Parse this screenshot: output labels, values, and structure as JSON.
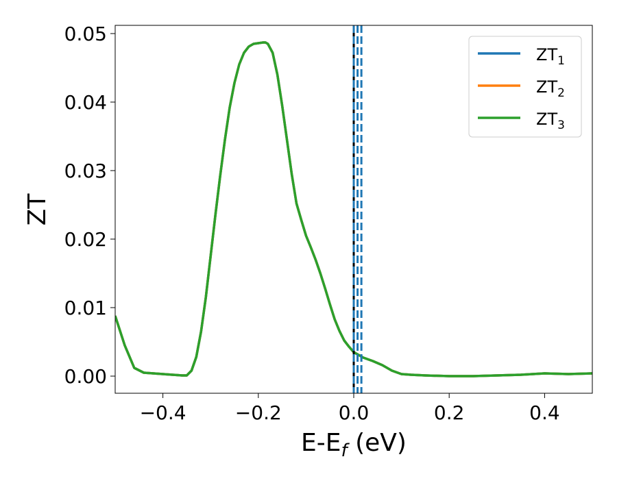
{
  "chart_data": {
    "type": "line",
    "xlabel": "E-E",
    "xlabel_sub": "f",
    "xlabel_unit": " (eV)",
    "ylabel": "ZT",
    "xlim": [
      -0.5,
      0.5
    ],
    "ylim": [
      -0.0025,
      0.0512
    ],
    "x_ticks": [
      -0.4,
      -0.2,
      0.0,
      0.2,
      0.4
    ],
    "x_tick_labels": [
      "−0.4",
      "−0.2",
      "0.0",
      "0.2",
      "0.4"
    ],
    "y_ticks": [
      0.0,
      0.01,
      0.02,
      0.03,
      0.04,
      0.05
    ],
    "y_tick_labels": [
      "0.00",
      "0.01",
      "0.02",
      "0.03",
      "0.04",
      "0.05"
    ],
    "grid": false,
    "legend_position": "top-right",
    "legend": [
      {
        "main": "ZT",
        "sub": "1",
        "color": "#1f77b4"
      },
      {
        "main": "ZT",
        "sub": "2",
        "color": "#ff7f0e"
      },
      {
        "main": "ZT",
        "sub": "3",
        "color": "#2ca02c"
      }
    ],
    "vlines": [
      {
        "x": 0.0,
        "style": "solid",
        "color": "#000000"
      },
      {
        "x": 0.0,
        "style": "dashed",
        "color": "#1f77b4"
      },
      {
        "x": 0.008,
        "style": "dashed",
        "color": "#1f77b4"
      },
      {
        "x": 0.016,
        "style": "dashed",
        "color": "#1f77b4"
      }
    ],
    "x": [
      -0.5,
      -0.48,
      -0.46,
      -0.44,
      -0.42,
      -0.4,
      -0.38,
      -0.36,
      -0.35,
      -0.34,
      -0.33,
      -0.32,
      -0.31,
      -0.3,
      -0.29,
      -0.28,
      -0.27,
      -0.26,
      -0.25,
      -0.24,
      -0.23,
      -0.22,
      -0.21,
      -0.2,
      -0.19,
      -0.185,
      -0.18,
      -0.17,
      -0.16,
      -0.15,
      -0.14,
      -0.13,
      -0.12,
      -0.11,
      -0.1,
      -0.09,
      -0.08,
      -0.07,
      -0.06,
      -0.05,
      -0.04,
      -0.03,
      -0.02,
      -0.01,
      0.0,
      0.02,
      0.04,
      0.06,
      0.08,
      0.1,
      0.12,
      0.15,
      0.2,
      0.25,
      0.3,
      0.35,
      0.4,
      0.45,
      0.5
    ],
    "series": [
      {
        "name": "ZT₁",
        "color": "#1f77b4",
        "values": [
          0.0088,
          0.0045,
          0.0012,
          0.0005,
          0.0004,
          0.0003,
          0.0002,
          0.0001,
          0.0001,
          0.0008,
          0.0028,
          0.0065,
          0.0115,
          0.0175,
          0.0235,
          0.0292,
          0.0345,
          0.0392,
          0.0428,
          0.0455,
          0.0472,
          0.0481,
          0.0485,
          0.0486,
          0.0487,
          0.0487,
          0.0485,
          0.0472,
          0.044,
          0.0395,
          0.0345,
          0.0295,
          0.0252,
          0.0228,
          0.0205,
          0.0188,
          0.017,
          0.015,
          0.0128,
          0.0105,
          0.0083,
          0.0066,
          0.0052,
          0.0043,
          0.0035,
          0.0027,
          0.0022,
          0.0016,
          0.0008,
          0.0003,
          0.0002,
          0.0001,
          0.0,
          0.0,
          0.0001,
          0.0002,
          0.0004,
          0.0003,
          0.0004
        ]
      },
      {
        "name": "ZT₂",
        "color": "#ff7f0e",
        "values": [
          0.0088,
          0.0045,
          0.0012,
          0.0005,
          0.0004,
          0.0003,
          0.0002,
          0.0001,
          0.0001,
          0.0008,
          0.0028,
          0.0065,
          0.0115,
          0.0175,
          0.0235,
          0.0292,
          0.0345,
          0.0392,
          0.0428,
          0.0455,
          0.0472,
          0.0481,
          0.0485,
          0.0486,
          0.0487,
          0.0487,
          0.0485,
          0.0472,
          0.044,
          0.0395,
          0.0345,
          0.0295,
          0.0252,
          0.0228,
          0.0205,
          0.0188,
          0.017,
          0.015,
          0.0128,
          0.0105,
          0.0083,
          0.0066,
          0.0052,
          0.0043,
          0.0035,
          0.0027,
          0.0022,
          0.0016,
          0.0008,
          0.0003,
          0.0002,
          0.0001,
          0.0,
          0.0,
          0.0001,
          0.0002,
          0.0004,
          0.0003,
          0.0004
        ]
      },
      {
        "name": "ZT₃",
        "color": "#2ca02c",
        "values": [
          0.0088,
          0.0045,
          0.0012,
          0.0005,
          0.0004,
          0.0003,
          0.0002,
          0.0001,
          0.0001,
          0.0008,
          0.0028,
          0.0065,
          0.0115,
          0.0175,
          0.0235,
          0.0292,
          0.0345,
          0.0392,
          0.0428,
          0.0455,
          0.0472,
          0.0481,
          0.0485,
          0.0486,
          0.0487,
          0.0487,
          0.0485,
          0.0472,
          0.044,
          0.0395,
          0.0345,
          0.0295,
          0.0252,
          0.0228,
          0.0205,
          0.0188,
          0.017,
          0.015,
          0.0128,
          0.0105,
          0.0083,
          0.0066,
          0.0052,
          0.0043,
          0.0035,
          0.0027,
          0.0022,
          0.0016,
          0.0008,
          0.0003,
          0.0002,
          0.0001,
          0.0,
          0.0,
          0.0001,
          0.0002,
          0.0004,
          0.0003,
          0.0004
        ]
      }
    ]
  }
}
